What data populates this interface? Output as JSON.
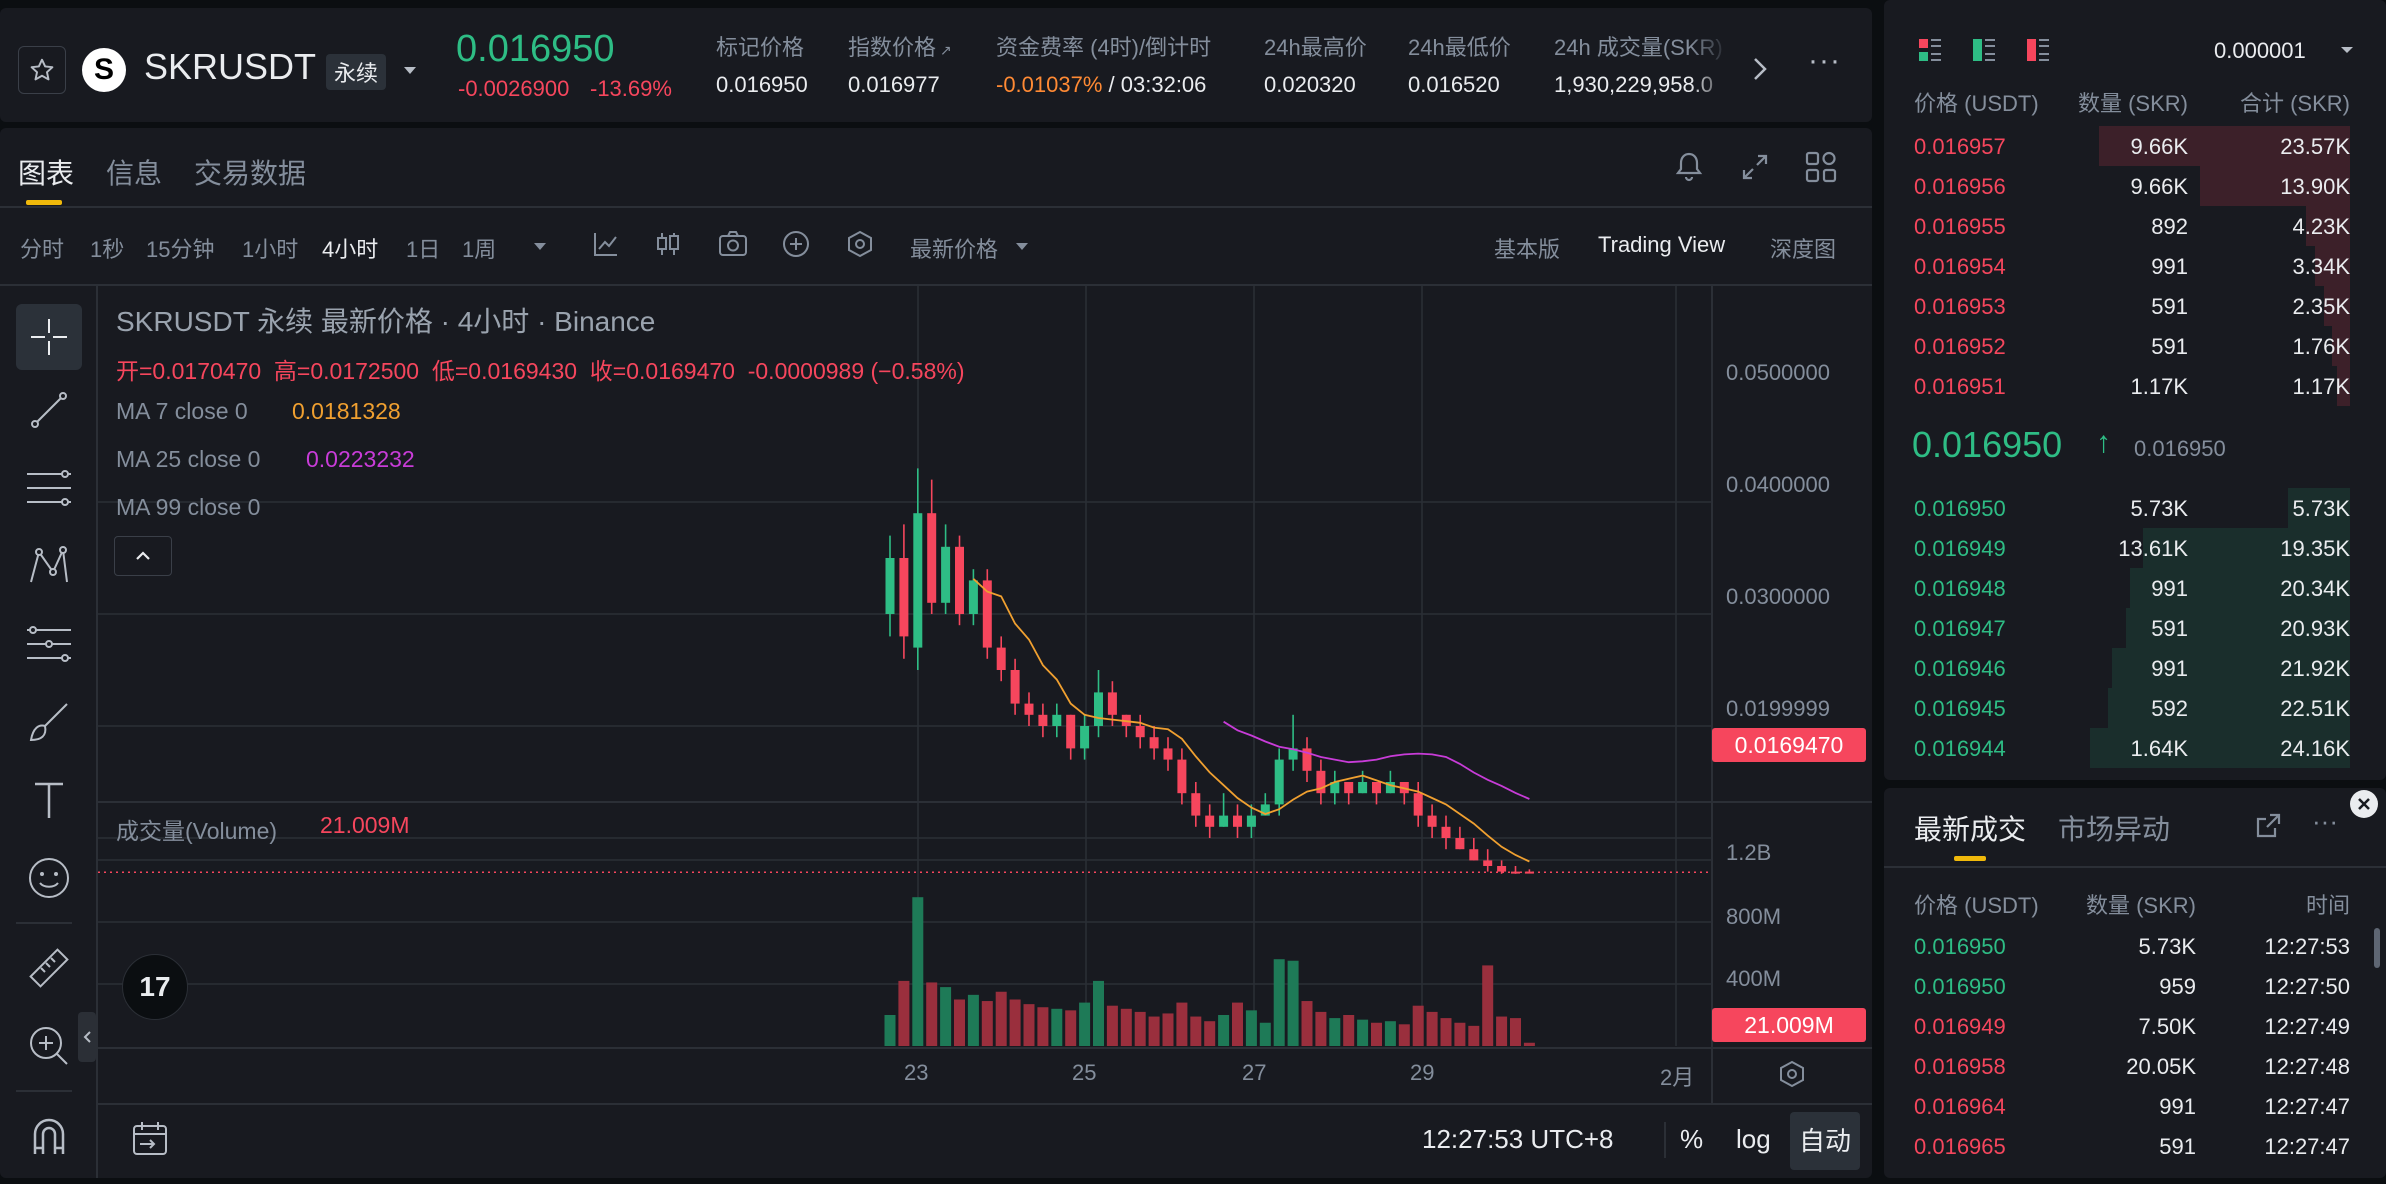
{
  "header": {
    "symbol": "SKRUSDT",
    "contract_type": "永续",
    "last_price": "0.016950",
    "change_abs": "-0.0026900",
    "change_pct": "-13.69%",
    "stats": [
      {
        "label": "标记价格",
        "value": "0.016950"
      },
      {
        "label": "指数价格",
        "value": "0.016977"
      },
      {
        "label": "资金费率 (4时)/倒计时",
        "rate": "-0.01037%",
        "sep": " / ",
        "countdown": "03:32:06"
      },
      {
        "label": "24h最高价",
        "value": "0.020320"
      },
      {
        "label": "24h最低价",
        "value": "0.016520"
      },
      {
        "label": "24h 成交量(SKR)",
        "value": "1,930,229,958.0"
      }
    ]
  },
  "tabs": [
    "图表",
    "信息",
    "交易数据"
  ],
  "toolbar": {
    "intervals": [
      "分时",
      "1秒",
      "15分钟",
      "1小时",
      "4小时",
      "1日",
      "1周"
    ],
    "active_interval": "4小时",
    "price_type": "最新价格",
    "views": [
      "基本版",
      "Trading View",
      "深度图"
    ],
    "active_view": "Trading View"
  },
  "chart_legend": {
    "title": "SKRUSDT 永续 最新价格 · 4小时 · Binance",
    "ohlc": "开=0.0170470  高=0.0172500  低=0.0169430  收=0.0169470  -0.0000989 (−0.58%)",
    "ma7_label": "MA 7 close 0",
    "ma7_value": "0.0181328",
    "ma25_label": "MA 25 close 0",
    "ma25_value": "0.0223232",
    "ma99_label": "MA 99 close 0",
    "volume_label": "成交量(Volume)",
    "volume_value": "21.009M"
  },
  "price_axis": [
    "0.0500000",
    "0.0400000",
    "0.0300000",
    "0.0199999"
  ],
  "current_price_tag": "0.0169470",
  "volume_axis": [
    "1.2B",
    "800M",
    "400M"
  ],
  "volume_tag": "21.009M",
  "time_axis": [
    "23",
    "25",
    "27",
    "29",
    "2月"
  ],
  "bottom_bar": {
    "clock": "12:27:53 UTC+8",
    "percent": "%",
    "log": "log",
    "auto": "自动"
  },
  "colors": {
    "up": "#2ebd85",
    "down": "#f6465d",
    "ma7": "#f0a030",
    "ma25": "#c83cd8",
    "accent": "#f0b90b"
  },
  "order_book": {
    "precision": "0.000001",
    "headers": [
      "价格 (USDT)",
      "数量 (SKR)",
      "合计 (SKR)"
    ],
    "asks": [
      {
        "price": "0.016957",
        "qty": "9.66K",
        "total": "23.57K",
        "depth": 0.57
      },
      {
        "price": "0.016956",
        "qty": "9.66K",
        "total": "13.90K",
        "depth": 0.34
      },
      {
        "price": "0.016955",
        "qty": "892",
        "total": "4.23K",
        "depth": 0.1
      },
      {
        "price": "0.016954",
        "qty": "991",
        "total": "3.34K",
        "depth": 0.08
      },
      {
        "price": "0.016953",
        "qty": "591",
        "total": "2.35K",
        "depth": 0.06
      },
      {
        "price": "0.016952",
        "qty": "591",
        "total": "1.76K",
        "depth": 0.04
      },
      {
        "price": "0.016951",
        "qty": "1.17K",
        "total": "1.17K",
        "depth": 0.03
      }
    ],
    "mid_price": "0.016950",
    "mid_mark": "0.016950",
    "bids": [
      {
        "price": "0.016950",
        "qty": "5.73K",
        "total": "5.73K",
        "depth": 0.14
      },
      {
        "price": "0.016949",
        "qty": "13.61K",
        "total": "19.35K",
        "depth": 0.47
      },
      {
        "price": "0.016948",
        "qty": "991",
        "total": "20.34K",
        "depth": 0.5
      },
      {
        "price": "0.016947",
        "qty": "591",
        "total": "20.93K",
        "depth": 0.51
      },
      {
        "price": "0.016946",
        "qty": "991",
        "total": "21.92K",
        "depth": 0.54
      },
      {
        "price": "0.016945",
        "qty": "592",
        "total": "22.51K",
        "depth": 0.55
      },
      {
        "price": "0.016944",
        "qty": "1.64K",
        "total": "24.16K",
        "depth": 0.59
      }
    ]
  },
  "trades": {
    "tabs": [
      "最新成交",
      "市场异动"
    ],
    "headers": [
      "价格 (USDT)",
      "数量 (SKR)",
      "时间"
    ],
    "rows": [
      {
        "price": "0.016950",
        "qty": "5.73K",
        "time": "12:27:53",
        "side": "up"
      },
      {
        "price": "0.016950",
        "qty": "959",
        "time": "12:27:50",
        "side": "up"
      },
      {
        "price": "0.016949",
        "qty": "7.50K",
        "time": "12:27:49",
        "side": "down"
      },
      {
        "price": "0.016958",
        "qty": "20.05K",
        "time": "12:27:48",
        "side": "down"
      },
      {
        "price": "0.016964",
        "qty": "991",
        "time": "12:27:47",
        "side": "down"
      },
      {
        "price": "0.016965",
        "qty": "591",
        "time": "12:27:47",
        "side": "down"
      }
    ]
  }
}
